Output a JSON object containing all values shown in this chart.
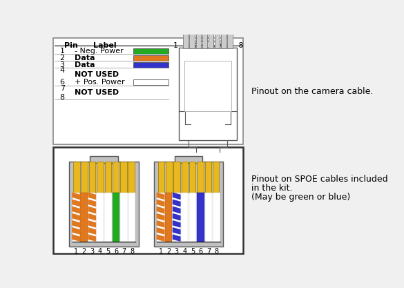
{
  "bg_color": "#f0f0f0",
  "top_box_bg": "#ffffff",
  "top_box_border": "#888888",
  "bottom_box_bg": "#ffffff",
  "bottom_box_border": "#333333",
  "pin_header": "Pin",
  "label_header": "Label",
  "pin_label_header": "1 2 3 4 5 6 7 8",
  "right_label_text": "Pinout on the camera cable.",
  "bottom_right_text": [
    "Pinout on SPOE cables included",
    "in the kit.",
    "(May be green or blue)"
  ],
  "gold_color": "#e8b820",
  "orange_color": "#e07820",
  "green_color": "#22aa22",
  "blue_color": "#3333cc",
  "white_color": "#ffffff",
  "gray_color": "#c0c0c0",
  "pin1_color": "#22aa22",
  "pin2_color": "#e07820",
  "pin3_color": "#3333cc",
  "pin6_color": "#ffffff",
  "left_wire_colors": [
    "orange_stripe",
    "orange",
    "orange_stripe",
    "white",
    "white",
    "green",
    "white",
    "white"
  ],
  "right_wire_colors": [
    "orange_stripe",
    "orange",
    "blue_stripe",
    "white",
    "white",
    "blue",
    "white",
    "white"
  ]
}
